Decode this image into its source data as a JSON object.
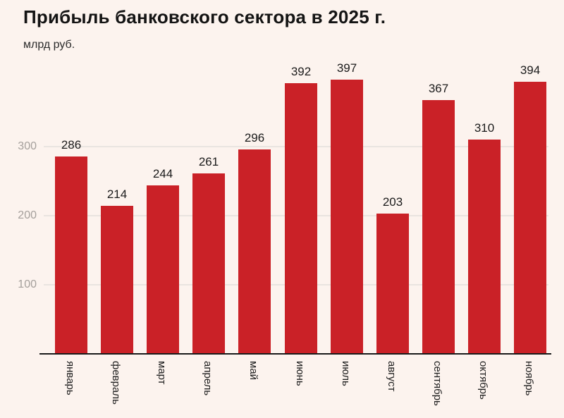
{
  "header": {
    "title": "Прибыль банковского сектора в 2025 г.",
    "subtitle": "млрд руб."
  },
  "chart_data": {
    "type": "bar",
    "title": "Прибыль банковского сектора в 2025 г.",
    "ylabel": "млрд руб.",
    "categories": [
      "январь",
      "февраль",
      "март",
      "апрель",
      "май",
      "июнь",
      "июль",
      "август",
      "сентябрь",
      "октябрь",
      "ноябрь"
    ],
    "values": [
      286,
      214,
      244,
      261,
      296,
      392,
      397,
      203,
      367,
      310,
      394
    ],
    "yticks": [
      100,
      200,
      300
    ],
    "ylim": [
      0,
      420
    ],
    "grid": true,
    "legend": "none",
    "value_labels_shown": true,
    "colors": {
      "bar": "#ca2127",
      "background": "#fcf3ee",
      "gridline": "#e9e4e0",
      "axis_line": "#1a1a1a",
      "ytick_label": "#a5a09c",
      "xtick_label": "#1e1e1e",
      "value_label": "#1b1b1b",
      "title": "#141414",
      "subtitle": "#2b2b2b"
    }
  }
}
